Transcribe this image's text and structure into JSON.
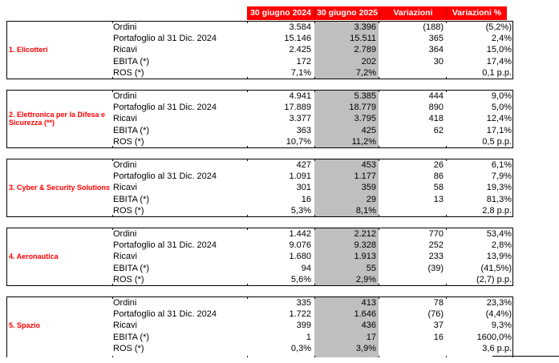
{
  "header": {
    "columns": [
      "30 giugno 2024",
      "30 giugno 2025",
      "Variazioni",
      "Variazioni %"
    ]
  },
  "sections": [
    {
      "label": "1. Elicotteri",
      "rows": [
        {
          "label": "Ordini",
          "values": [
            "3.584",
            "3.396",
            "(188)",
            "(5,2%)"
          ]
        },
        {
          "label": "Portafoglio al 31 Dic. 2024",
          "values": [
            "15.146",
            "15.511",
            "365",
            "2,4%"
          ]
        },
        {
          "label": "Ricavi",
          "values": [
            "2.425",
            "2.789",
            "364",
            "15,0%"
          ]
        },
        {
          "label": "EBITA (*)",
          "values": [
            "172",
            "202",
            "30",
            "17,4%"
          ]
        },
        {
          "label": "ROS (*)",
          "values": [
            "7,1%",
            "7,2%",
            "",
            "0,1 p.p."
          ]
        }
      ]
    },
    {
      "label": "2. Elettronica per la Difesa e Sicurezza (**)",
      "rows": [
        {
          "label": "Ordini",
          "values": [
            "4.941",
            "5.385",
            "444",
            "9,0%"
          ]
        },
        {
          "label": "Portafoglio al 31 Dic. 2024",
          "values": [
            "17.889",
            "18.779",
            "890",
            "5,0%"
          ]
        },
        {
          "label": "Ricavi",
          "values": [
            "3.377",
            "3.795",
            "418",
            "12,4%"
          ]
        },
        {
          "label": "EBITA (*)",
          "values": [
            "363",
            "425",
            "62",
            "17,1%"
          ]
        },
        {
          "label": "ROS (*)",
          "values": [
            "10,7%",
            "11,2%",
            "",
            "0,5 p.p."
          ]
        }
      ]
    },
    {
      "label": "3. Cyber & Security Solutions",
      "rows": [
        {
          "label": "Ordini",
          "values": [
            "427",
            "453",
            "26",
            "6,1%"
          ]
        },
        {
          "label": "Portafoglio al 31 Dic. 2024",
          "values": [
            "1.091",
            "1.177",
            "86",
            "7,9%"
          ]
        },
        {
          "label": "Ricavi",
          "values": [
            "301",
            "359",
            "58",
            "19,3%"
          ]
        },
        {
          "label": "EBITA (*)",
          "values": [
            "16",
            "29",
            "13",
            "81,3%"
          ]
        },
        {
          "label": "ROS (*)",
          "values": [
            "5,3%",
            "8,1%",
            "",
            "2,8 p.p."
          ]
        }
      ]
    },
    {
      "label": "4. Aeronautica",
      "rows": [
        {
          "label": "Ordini",
          "values": [
            "1.442",
            "2.212",
            "770",
            "53,4%"
          ]
        },
        {
          "label": "Portafoglio al 31 Dic. 2024",
          "values": [
            "9.076",
            "9.328",
            "252",
            "2,8%"
          ]
        },
        {
          "label": "Ricavi",
          "values": [
            "1.680",
            "1.913",
            "233",
            "13,9%"
          ]
        },
        {
          "label": "EBITA (*)",
          "values": [
            "94",
            "55",
            "(39)",
            "(41,5%)"
          ]
        },
        {
          "label": "ROS (*)",
          "values": [
            "5,6%",
            "2,9%",
            "",
            "(2,7) p.p."
          ]
        }
      ]
    },
    {
      "label": "5. Spazio",
      "rows": [
        {
          "label": "Ordini",
          "values": [
            "335",
            "413",
            "78",
            "23,3%"
          ]
        },
        {
          "label": "Portafoglio al 31 Dic. 2024",
          "values": [
            "1.722",
            "1.646",
            "(76)",
            "(4,4%)"
          ]
        },
        {
          "label": "Ricavi",
          "values": [
            "399",
            "436",
            "37",
            "9,3%"
          ]
        },
        {
          "label": "EBITA (*)",
          "values": [
            "1",
            "17",
            "16",
            "1600,0%"
          ]
        },
        {
          "label": "ROS (*)",
          "values": [
            "0,3%",
            "3,9%",
            "",
            "3,6 p.p."
          ]
        }
      ]
    }
  ],
  "colors": {
    "header_bg": "#FF0000",
    "header_text": "#FFFFFF",
    "section_label_text": "#FF0000",
    "highlight_column_bg": "#BFBFBF",
    "border": "#000000"
  }
}
